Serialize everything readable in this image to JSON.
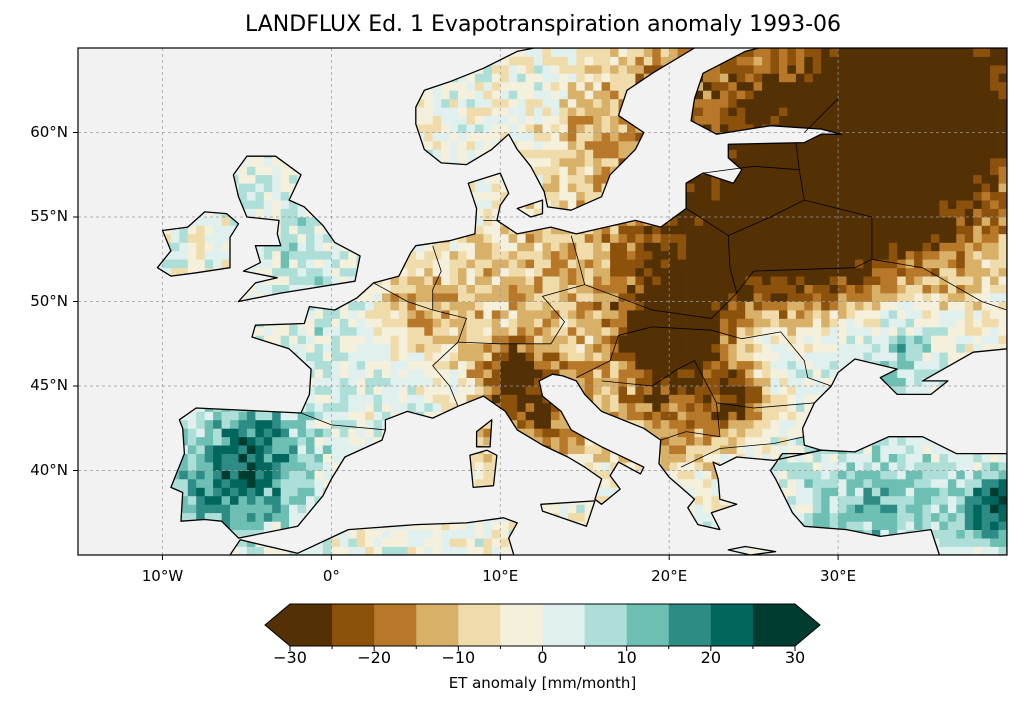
{
  "title": "LANDFLUX Ed. 1 Evapotranspiration anomaly 1993-06",
  "map": {
    "extent_lon": [
      -15,
      40
    ],
    "extent_lat": [
      35,
      65
    ],
    "lon_ticks": [
      {
        "value": -10,
        "label": "10°W"
      },
      {
        "value": 0,
        "label": "0°"
      },
      {
        "value": 10,
        "label": "10°E"
      },
      {
        "value": 20,
        "label": "20°E"
      },
      {
        "value": 30,
        "label": "30°E"
      }
    ],
    "lat_ticks": [
      {
        "value": 60,
        "label": "60°N"
      },
      {
        "value": 55,
        "label": "55°N"
      },
      {
        "value": 50,
        "label": "50°N"
      },
      {
        "value": 45,
        "label": "45°N"
      },
      {
        "value": 40,
        "label": "40°N"
      }
    ],
    "ocean_color": "#f2f2f2"
  },
  "colorbar": {
    "label": "ET anomaly [mm/month]",
    "bounds": [
      -30,
      30
    ],
    "step": 5,
    "extend": "both",
    "ticks": [
      {
        "value": -30,
        "label": "−30"
      },
      {
        "value": -20,
        "label": "−20"
      },
      {
        "value": -10,
        "label": "−10"
      },
      {
        "value": 0,
        "label": "0"
      },
      {
        "value": 10,
        "label": "10"
      },
      {
        "value": 20,
        "label": "20"
      },
      {
        "value": 30,
        "label": "30"
      }
    ],
    "colors": [
      "#543005",
      "#8c510a",
      "#b7782a",
      "#d8b068",
      "#f0dcab",
      "#f5f0dc",
      "#e0f0ee",
      "#addfd8",
      "#6dbfb3",
      "#2e8c86",
      "#00665e",
      "#003c30"
    ]
  }
}
